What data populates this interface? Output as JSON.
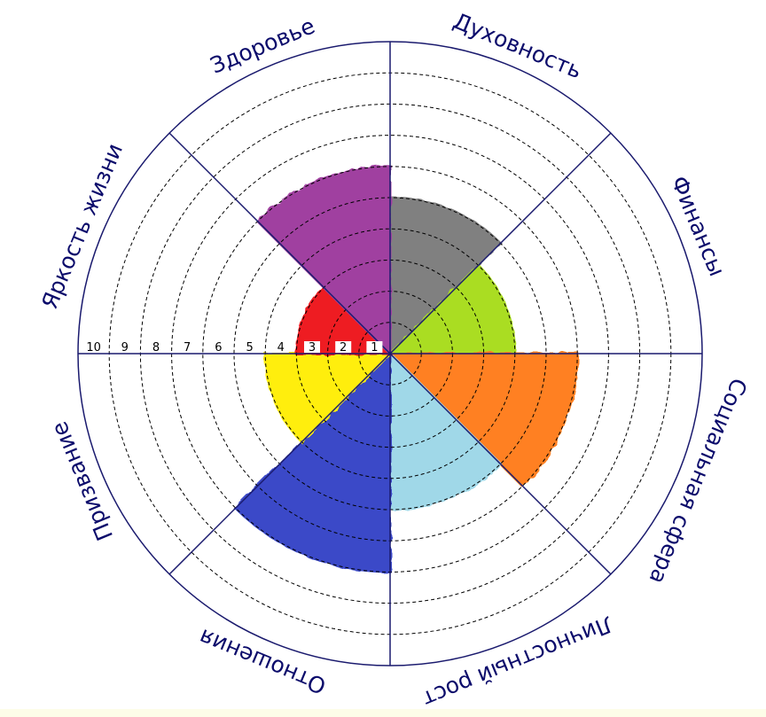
{
  "chart_data": {
    "type": "polar-area",
    "categories": [
      "Духовность",
      "Финансы",
      "Социальная сфера",
      "Личностный рост",
      "Отношения",
      "Призвание",
      "Яркость жизни",
      "Здоровье"
    ],
    "values": [
      5,
      4,
      6,
      5,
      7,
      4,
      3,
      6
    ],
    "colors": [
      "#808080",
      "#aadd22",
      "#ff8020",
      "#a0d8e8",
      "#3a48c8",
      "#ffee10",
      "#ee1c24",
      "#a040a0"
    ],
    "rlim": [
      0,
      10
    ],
    "tick_labels": [
      "1",
      "2",
      "3",
      "4",
      "5",
      "6",
      "7",
      "8",
      "9",
      "10"
    ],
    "grid": true,
    "outline_color": "#1a1a6e"
  }
}
